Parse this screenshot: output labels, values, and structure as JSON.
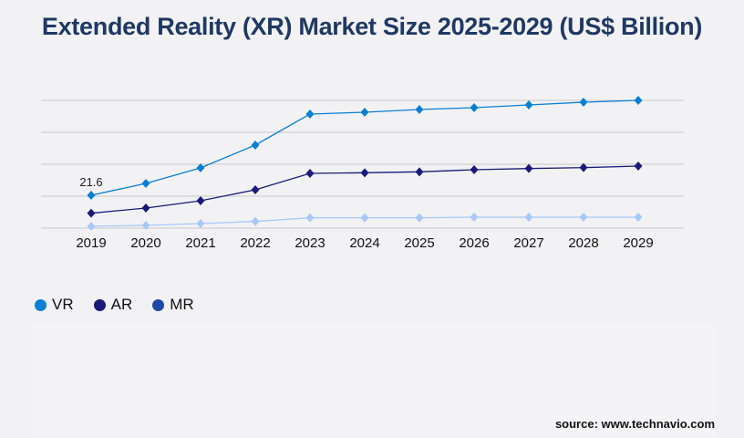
{
  "title": "Extended Reality (XR) Market Size 2025-2029 (US$ Billion)",
  "source": "source: www.technavio.com",
  "chart_data": {
    "type": "line",
    "title": "Extended Reality (XR) Market Size 2025-2029 (US$ Billion)",
    "categories": [
      "2019",
      "2020",
      "2021",
      "2022",
      "2023",
      "2024",
      "2025",
      "2026",
      "2027",
      "2028",
      "2029"
    ],
    "ylim": [
      0,
      84
    ],
    "grid": true,
    "legend_position": "bottom-left",
    "series": [
      {
        "name": "VR",
        "color": "#0a7fd4",
        "marker_color": "#0a7fd4",
        "values": [
          21.6,
          29.4,
          39.6,
          54.6,
          75,
          76.2,
          78,
          79.2,
          81,
          82.8,
          84
        ]
      },
      {
        "name": "AR",
        "color": "#1a1a7a",
        "marker_color": "#1a1a7a",
        "values": [
          9.8,
          13.2,
          18,
          25.2,
          36,
          36.4,
          37,
          38.4,
          39.2,
          39.8,
          40.8
        ]
      },
      {
        "name": "MR",
        "color": "#a8c8f8",
        "marker_color": "#1f4aa8",
        "values": [
          1.2,
          1.8,
          3,
          4.4,
          6.8,
          6.8,
          6.8,
          7.2,
          7.2,
          7.2,
          7.2
        ]
      }
    ],
    "data_labels": [
      {
        "series": "VR",
        "category": "2019",
        "text": "21.6"
      }
    ]
  }
}
